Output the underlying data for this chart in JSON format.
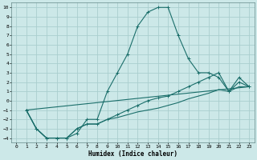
{
  "title": "",
  "xlabel": "Humidex (Indice chaleur)",
  "background_color": "#cce8e8",
  "grid_color": "#aacece",
  "line_color": "#1a6e6a",
  "xlim": [
    -0.5,
    23.5
  ],
  "ylim": [
    -4.5,
    10.5
  ],
  "xticks": [
    0,
    1,
    2,
    3,
    4,
    5,
    6,
    7,
    8,
    9,
    10,
    11,
    12,
    13,
    14,
    15,
    16,
    17,
    18,
    19,
    20,
    21,
    22,
    23
  ],
  "yticks": [
    -4,
    -3,
    -2,
    -1,
    0,
    1,
    2,
    3,
    4,
    5,
    6,
    7,
    8,
    9,
    10
  ],
  "curve1_x": [
    1,
    2,
    3,
    4,
    5,
    6,
    7,
    8,
    9,
    10,
    11,
    12,
    13,
    14,
    15,
    16,
    17,
    18,
    19,
    20,
    21,
    22,
    23
  ],
  "curve1_y": [
    -1,
    -3,
    -4,
    -4,
    -4,
    -3.5,
    -2,
    -2,
    1,
    3,
    5,
    8,
    9.5,
    10,
    10,
    7,
    4.5,
    3,
    3,
    2.5,
    1,
    2,
    1.5
  ],
  "curve2_x": [
    1,
    2,
    3,
    4,
    5,
    6,
    7,
    8,
    9,
    10,
    11,
    12,
    13,
    14,
    15,
    16,
    17,
    18,
    19,
    20,
    21,
    22,
    23
  ],
  "curve2_y": [
    -1,
    -3,
    -4,
    -4,
    -4,
    -3,
    -2.5,
    -2.5,
    -2,
    -1.5,
    -1,
    -0.5,
    0,
    0.3,
    0.5,
    1,
    1.5,
    2,
    2.5,
    3,
    1,
    2.5,
    1.5
  ],
  "curve3_x": [
    1,
    2,
    3,
    4,
    5,
    6,
    7,
    8,
    9,
    10,
    11,
    12,
    13,
    14,
    15,
    16,
    17,
    18,
    19,
    20,
    21,
    22,
    23
  ],
  "curve3_y": [
    -1,
    -3,
    -4,
    -4,
    -4,
    -3,
    -2.5,
    -2.5,
    -2,
    -1.8,
    -1.5,
    -1.2,
    -1,
    -0.8,
    -0.5,
    -0.2,
    0.2,
    0.5,
    0.8,
    1.2,
    1,
    1.5,
    1.5
  ],
  "curve4_x": [
    1,
    23
  ],
  "curve4_y": [
    -1,
    1.5
  ]
}
